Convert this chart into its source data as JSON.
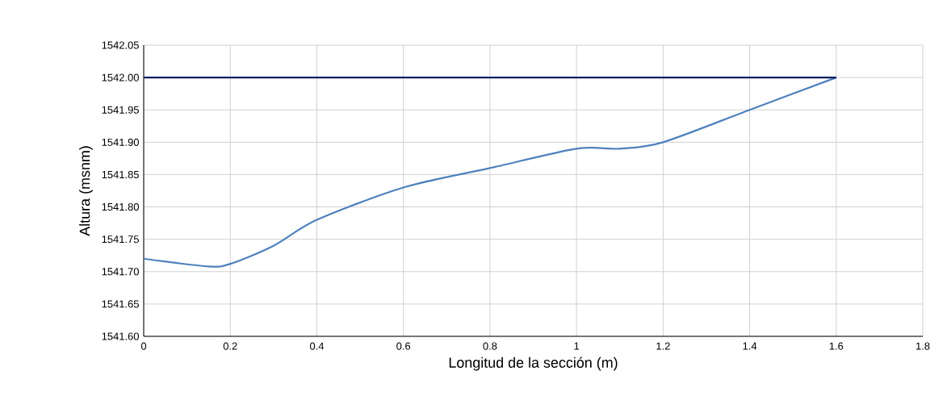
{
  "chart_data": {
    "type": "line",
    "xlabel": "Longitud de la sección (m)",
    "ylabel": "Altura (msnm)",
    "series": [
      {
        "color": "#4f81bd",
        "x": [
          0,
          0.15,
          0.2,
          0.3,
          0.4,
          0.6,
          0.8,
          1.0,
          1.1,
          1.2,
          1.4,
          1.6
        ],
        "values": [
          1541.72,
          1541.708,
          1541.712,
          1541.74,
          1541.78,
          1541.83,
          1541.86,
          1541.89,
          1541.89,
          1541.9,
          1541.95,
          1542.0
        ]
      },
      {
        "color": "#002060",
        "x": [
          0,
          1.6
        ],
        "values": [
          1542.0,
          1542.0
        ]
      }
    ],
    "xlim": [
      0,
      1.8
    ],
    "xticks": [
      0,
      0.2,
      0.4,
      0.6,
      0.8,
      1,
      1.2,
      1.4,
      1.6,
      1.8
    ],
    "ylim": [
      1541.6,
      1542.05
    ],
    "yticks": [
      {
        "value": 1541.6,
        "label": "1541.60"
      },
      {
        "value": 1541.65,
        "label": "1541.65"
      },
      {
        "value": 1541.7,
        "label": "1541.70"
      },
      {
        "value": 1541.75,
        "label": "1541.75"
      },
      {
        "value": 1541.8,
        "label": "1541.80"
      },
      {
        "value": 1541.85,
        "label": "1541.85"
      },
      {
        "value": 1541.9,
        "label": "1541.90"
      },
      {
        "value": 1541.95,
        "label": "1541.95"
      },
      {
        "value": 1542.0,
        "label": "1542.00"
      },
      {
        "value": 1542.05,
        "label": "1542.05"
      }
    ],
    "grid": true,
    "marker": "none",
    "line_style": "solid"
  }
}
